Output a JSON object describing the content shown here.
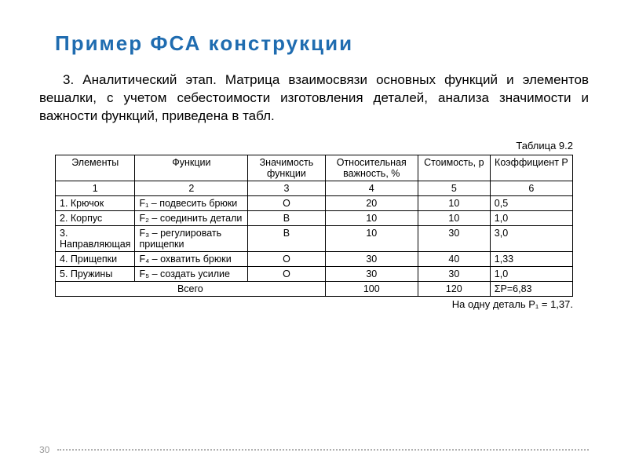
{
  "title": "Пример  ФСА  конструкции",
  "paragraph": "3. Аналитический этап. Матрица взаимосвязи основных функций и элементов вешалки, с учетом себестоимости изготовления деталей, анализа значимости и важности функций, приведена в табл.",
  "table": {
    "caption": "Таблица 9.2",
    "columns": [
      "Элементы",
      "Функции",
      "Значимость функции",
      "Относительная важность, %",
      "Стоимость, р",
      "Коэффициент Р"
    ],
    "col_numbers": [
      "1",
      "2",
      "3",
      "4",
      "5",
      "6"
    ],
    "rows": [
      {
        "c1": "1. Крючок",
        "c2": "F₁ – подвесить брюки",
        "c3": "О",
        "c4": "20",
        "c5": "10",
        "c6": "0,5"
      },
      {
        "c1": "2. Корпус",
        "c2": "F₂ – соединить детали",
        "c3": "В",
        "c4": "10",
        "c5": "10",
        "c6": "1,0"
      },
      {
        "c1": "3. Направляющая",
        "c2": "F₃ – регулировать прищепки",
        "c3": "В",
        "c4": "10",
        "c5": "30",
        "c6": "3,0"
      },
      {
        "c1": "4. Прищепки",
        "c2": "F₄ – охватить брюки",
        "c3": "О",
        "c4": "30",
        "c5": "40",
        "c6": "1,33"
      },
      {
        "c1": "5. Пружины",
        "c2": "F₅ – создать усилие",
        "c3": "О",
        "c4": "30",
        "c5": "30",
        "c6": "1,0"
      }
    ],
    "totals": {
      "label": "Всего",
      "c4": "100",
      "c5": "120",
      "c6": "ΣР=6,83"
    },
    "footer_note": "На одну деталь  Р₁ = 1,37.",
    "col_widths": [
      "15%",
      "22%",
      "15%",
      "18%",
      "14%",
      "16%"
    ],
    "border_color": "#000000"
  },
  "page_number": "30"
}
